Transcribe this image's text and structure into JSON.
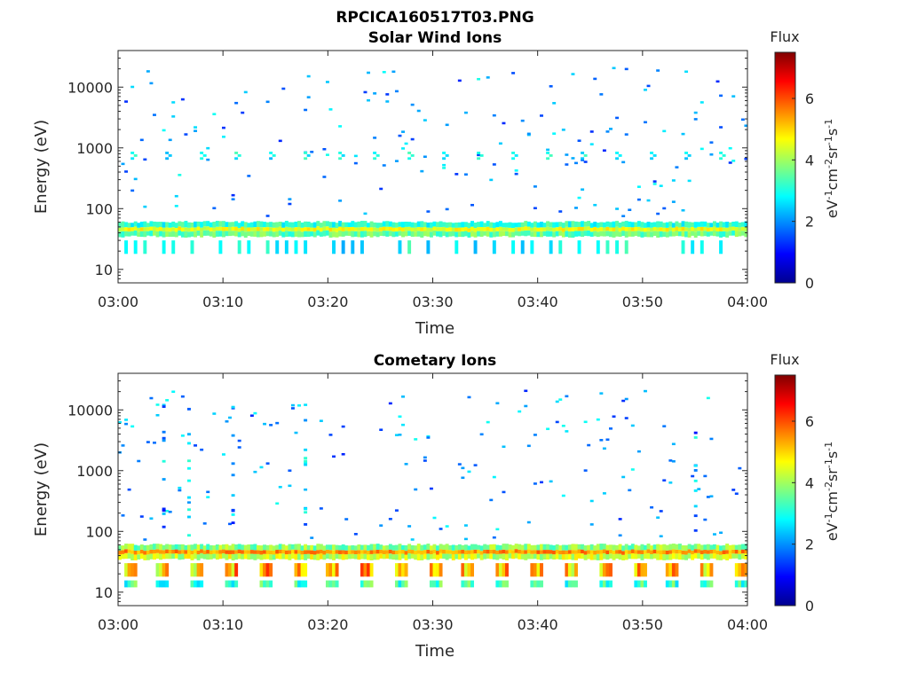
{
  "figure": {
    "title": "RPCICA160517T03.PNG"
  },
  "chart_data": [
    {
      "type": "heatmap",
      "title": "Solar Wind Ions",
      "xlabel": "Time",
      "ylabel": "Energy (eV)",
      "xlim": [
        "03:00",
        "04:00"
      ],
      "x_ticks": [
        "03:00",
        "03:10",
        "03:20",
        "03:30",
        "03:40",
        "03:50",
        "04:00"
      ],
      "ylim": [
        6,
        40000
      ],
      "y_scale": "log",
      "y_ticks": [
        "10",
        "100",
        "1000",
        "10000"
      ],
      "colorbar": {
        "title": "Flux",
        "units": "eV-1cm-2sr-1s-1",
        "min": 0,
        "max": 7.5,
        "ticks": [
          "0",
          "2",
          "4",
          "6"
        ],
        "colormap": "jet"
      },
      "features": {
        "main_band_energy_range": [
          35,
          60
        ],
        "main_band_flux": 4.3,
        "periodic_bursts_energy": 750,
        "periodic_bursts_flux": 2.8
      }
    },
    {
      "type": "heatmap",
      "title": "Cometary Ions",
      "xlabel": "Time",
      "ylabel": "Energy (eV)",
      "xlim": [
        "03:00",
        "04:00"
      ],
      "x_ticks": [
        "03:00",
        "03:10",
        "03:20",
        "03:30",
        "03:40",
        "03:50",
        "04:00"
      ],
      "ylim": [
        6,
        40000
      ],
      "y_scale": "log",
      "y_ticks": [
        "10",
        "100",
        "1000",
        "10000"
      ],
      "colorbar": {
        "title": "Flux",
        "units": "eV-1cm-2sr-1s-1",
        "min": 0,
        "max": 7.5,
        "ticks": [
          "0",
          "2",
          "4",
          "6"
        ],
        "colormap": "jet"
      },
      "features": {
        "main_band_energy_range": [
          35,
          60
        ],
        "main_band_flux": 5.2,
        "low_energy_bursts_energy_range": [
          12,
          30
        ],
        "low_energy_bursts_flux": 5.0
      }
    }
  ]
}
